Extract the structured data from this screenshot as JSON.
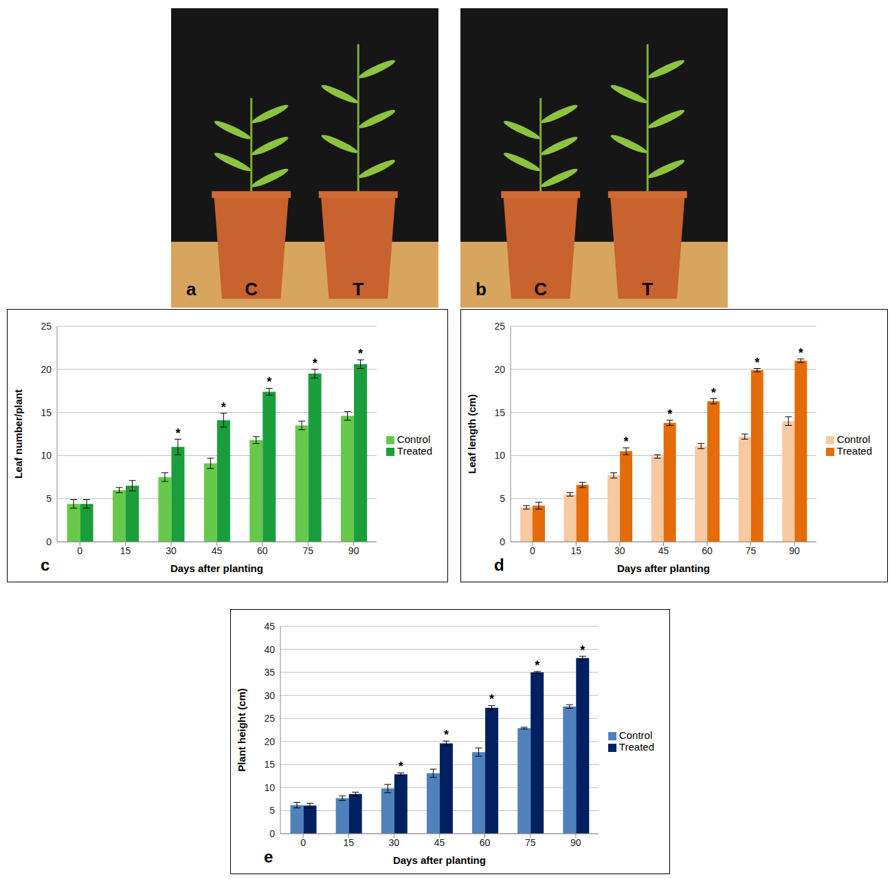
{
  "photos": [
    {
      "panel": "a",
      "labels": [
        "C",
        "T"
      ]
    },
    {
      "panel": "b",
      "labels": [
        "C",
        "T"
      ]
    }
  ],
  "chart_data": [
    {
      "panel": "c",
      "type": "bar",
      "categories": [
        "0",
        "15",
        "30",
        "45",
        "60",
        "75",
        "90"
      ],
      "x_label": "Days after planting",
      "y_label": "Leaf number/plant",
      "ylim": [
        0,
        25
      ],
      "yticks": [
        0,
        5,
        10,
        15,
        20,
        25
      ],
      "grid": true,
      "legend": "right",
      "series": [
        {
          "name": "Control",
          "color": "#66c94c",
          "values": [
            4.4,
            6.0,
            7.5,
            9.1,
            11.8,
            13.5,
            14.6
          ],
          "errors": [
            0.5,
            0.3,
            0.5,
            0.6,
            0.4,
            0.5,
            0.5
          ]
        },
        {
          "name": "Treated",
          "color": "#1a9e3c",
          "values": [
            4.4,
            6.5,
            11.0,
            14.1,
            17.4,
            19.5,
            20.6
          ],
          "errors": [
            0.5,
            0.6,
            0.9,
            0.8,
            0.4,
            0.5,
            0.5
          ],
          "annotations": [
            null,
            null,
            "*",
            "*",
            "*",
            "*",
            "*"
          ]
        }
      ]
    },
    {
      "panel": "d",
      "type": "bar",
      "categories": [
        "0",
        "15",
        "30",
        "45",
        "60",
        "75",
        "90"
      ],
      "x_label": "Days after planting",
      "y_label": "Leaf length (cm)",
      "ylim": [
        0,
        25
      ],
      "yticks": [
        0,
        5,
        10,
        15,
        20,
        25
      ],
      "grid": true,
      "legend": "right",
      "series": [
        {
          "name": "Control",
          "color": "#f9c9a1",
          "values": [
            4.0,
            5.5,
            7.7,
            9.9,
            11.1,
            12.2,
            14.0
          ],
          "errors": [
            0.2,
            0.2,
            0.3,
            0.2,
            0.3,
            0.3,
            0.5
          ]
        },
        {
          "name": "Treated",
          "color": "#e46c0a",
          "values": [
            4.2,
            6.6,
            10.5,
            13.8,
            16.3,
            19.9,
            21.0
          ],
          "errors": [
            0.4,
            0.3,
            0.4,
            0.3,
            0.3,
            0.2,
            0.2
          ],
          "annotations": [
            null,
            null,
            "*",
            "*",
            "*",
            "*",
            "*"
          ]
        }
      ]
    },
    {
      "panel": "e",
      "type": "bar",
      "categories": [
        "0",
        "15",
        "30",
        "45",
        "60",
        "75",
        "90"
      ],
      "x_label": "Days after planting",
      "y_label": "Plant height (cm)",
      "ylim": [
        0,
        45
      ],
      "yticks": [
        0,
        5,
        10,
        15,
        20,
        25,
        30,
        35,
        40,
        45
      ],
      "grid": true,
      "legend": "right",
      "series": [
        {
          "name": "Control",
          "color": "#4f81bd",
          "values": [
            6.2,
            7.7,
            9.8,
            13.1,
            17.7,
            22.9,
            27.6
          ],
          "errors": [
            0.6,
            0.5,
            0.9,
            0.9,
            0.9,
            0.2,
            0.4
          ]
        },
        {
          "name": "Treated",
          "color": "#002060",
          "values": [
            6.1,
            8.6,
            12.9,
            19.6,
            27.3,
            35.0,
            38.1
          ],
          "errors": [
            0.5,
            0.4,
            0.3,
            0.5,
            0.5,
            0.2,
            0.4
          ],
          "annotations": [
            null,
            null,
            "*",
            "*",
            "*",
            "*",
            "*"
          ]
        }
      ]
    }
  ]
}
